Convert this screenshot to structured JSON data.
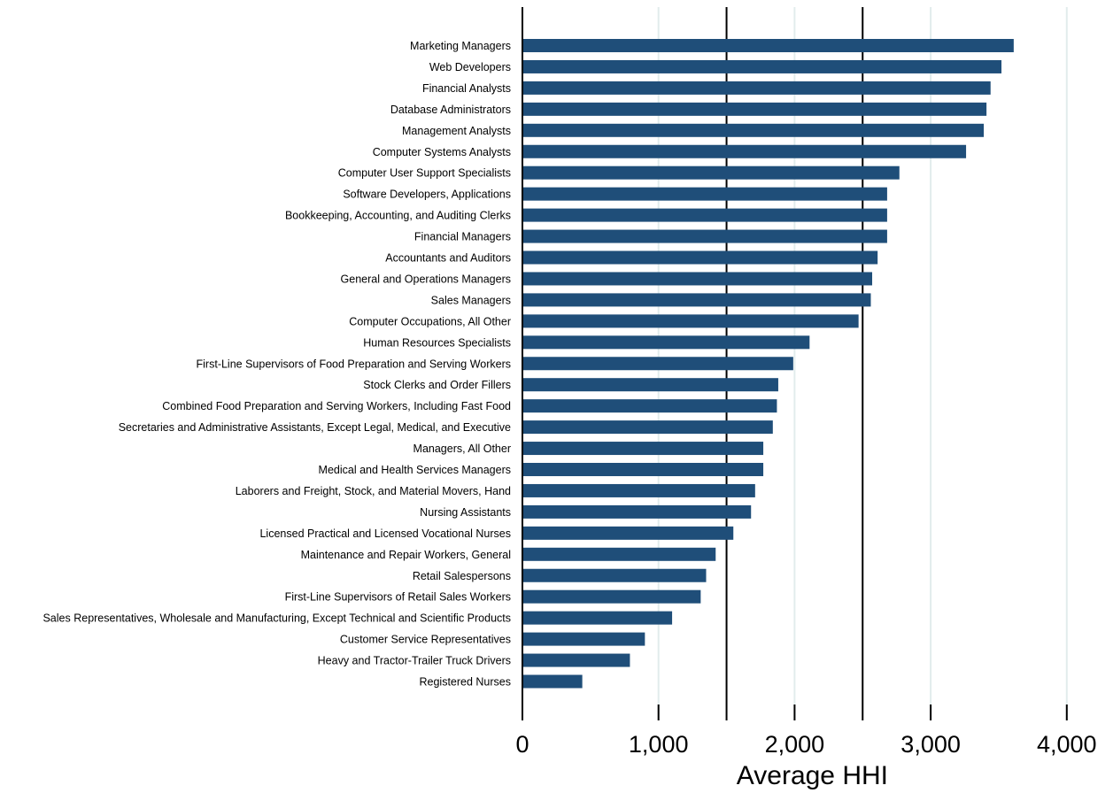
{
  "colors": {
    "bar": "#1f4e79",
    "grid": "#e2ecec",
    "axis": "#000000",
    "reference_line": "#000000"
  },
  "chart_data": {
    "type": "bar",
    "orientation": "horizontal",
    "title": "",
    "xlabel": "Average HHI",
    "ylabel": "",
    "xlim": [
      0,
      4200
    ],
    "xticks": [
      0,
      1000,
      2000,
      3000,
      4000
    ],
    "xtick_labels": [
      "0",
      "1,000",
      "2,000",
      "3,000",
      "4,000"
    ],
    "grid": "vertical, light",
    "reference_lines_x": [
      1500,
      2500
    ],
    "categories": [
      "Marketing Managers",
      "Web Developers",
      "Financial Analysts",
      "Database Administrators",
      "Management Analysts",
      "Computer Systems Analysts",
      "Computer User Support Specialists",
      "Software Developers, Applications",
      "Bookkeeping, Accounting, and Auditing Clerks",
      "Financial Managers",
      "Accountants and Auditors",
      "General and Operations Managers",
      "Sales Managers",
      "Computer Occupations, All Other",
      "Human Resources Specialists",
      "First-Line Supervisors of Food Preparation and Serving Workers",
      "Stock Clerks and Order Fillers",
      "Combined Food Preparation and Serving Workers, Including Fast Food",
      "Secretaries and Administrative Assistants, Except Legal, Medical, and Executive",
      "Managers, All Other",
      "Medical and Health Services Managers",
      "Laborers and Freight, Stock, and Material Movers, Hand",
      "Nursing Assistants",
      "Licensed Practical and Licensed Vocational Nurses",
      "Maintenance and Repair Workers, General",
      "Retail Salespersons",
      "First-Line Supervisors of Retail Sales Workers",
      "Sales Representatives, Wholesale and Manufacturing, Except Technical and Scientific Products",
      "Customer Service Representatives",
      "Heavy and Tractor-Trailer Truck Drivers",
      "Registered Nurses"
    ],
    "values": [
      3610,
      3520,
      3440,
      3410,
      3390,
      3260,
      2770,
      2680,
      2680,
      2680,
      2610,
      2570,
      2560,
      2470,
      2110,
      1990,
      1880,
      1870,
      1840,
      1770,
      1770,
      1710,
      1680,
      1550,
      1420,
      1350,
      1310,
      1100,
      900,
      790,
      440
    ]
  }
}
